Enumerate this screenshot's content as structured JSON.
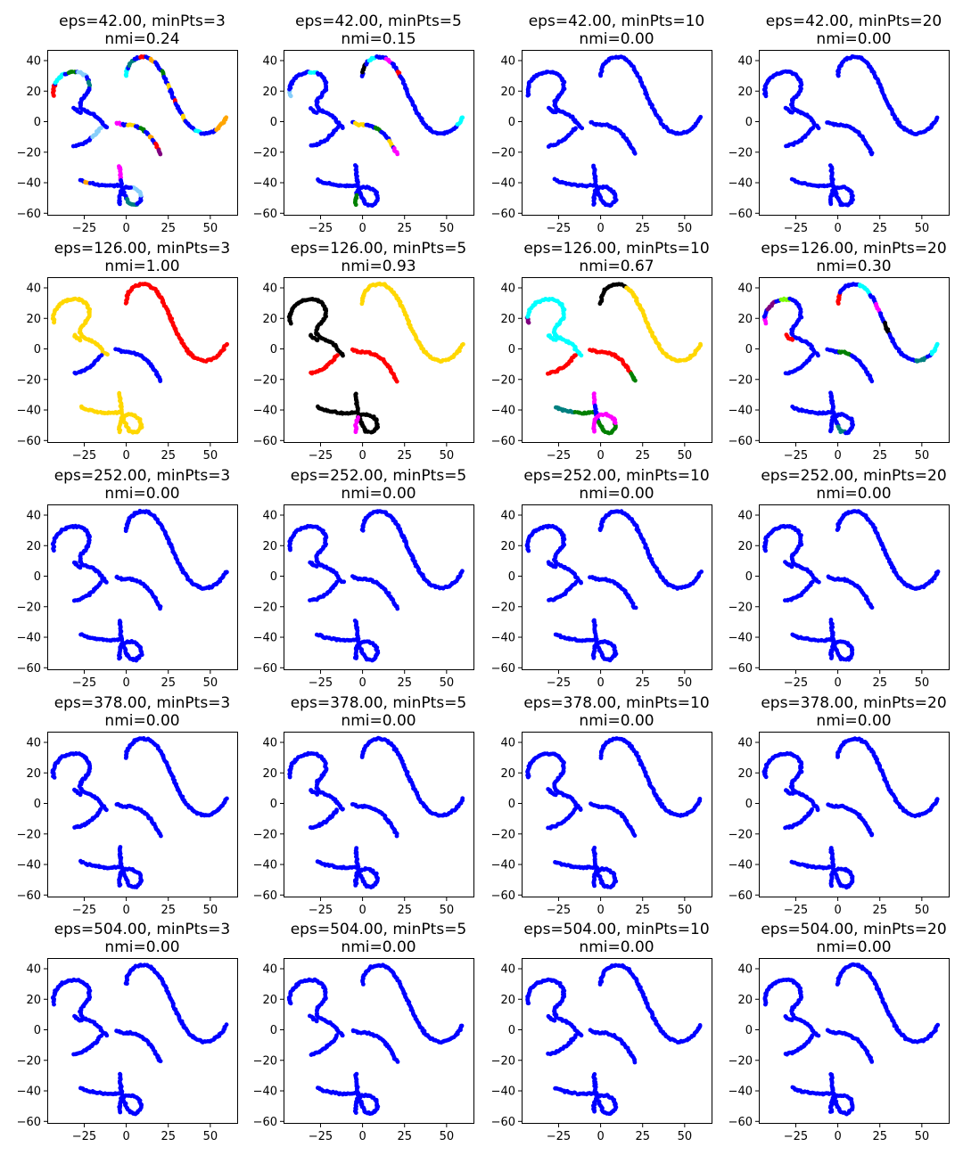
{
  "chart_data": {
    "type": "scatter",
    "figure_layout": "5x4 grid of scatter subplots",
    "xlim": [
      -47,
      66
    ],
    "ylim": [
      -61,
      47
    ],
    "xticks": [
      -25,
      0,
      25,
      50
    ],
    "yticks": [
      -60,
      -40,
      -20,
      0,
      20,
      40
    ],
    "xtick_labels": [
      "−25",
      "0",
      "25",
      "50"
    ],
    "ytick_labels": [
      "−60",
      "−40",
      "−20",
      "0",
      "20",
      "40"
    ],
    "palette": {
      "blue": "#0000ff",
      "red": "#ff0000",
      "gold": "#ffd700",
      "black": "#000000",
      "cyan": "#00ffff",
      "magenta": "#ff00ff",
      "green": "#008000",
      "teal": "#008080",
      "orange": "#ffa500",
      "purple": "#800080",
      "light-green": "#7cfc00",
      "brown": "#8b4513",
      "light-blue": "#87cefa"
    },
    "curves": {
      "s_curve": [
        [
          0,
          30
        ],
        [
          0.5,
          34
        ],
        [
          2,
          38
        ],
        [
          5,
          41
        ],
        [
          9,
          42.5
        ],
        [
          13,
          42
        ],
        [
          17,
          39
        ],
        [
          21,
          33
        ],
        [
          25,
          24
        ],
        [
          28,
          16
        ],
        [
          31,
          9
        ],
        [
          34,
          3
        ],
        [
          37,
          -2
        ],
        [
          41,
          -6
        ],
        [
          46,
          -8
        ],
        [
          51,
          -7
        ],
        [
          55,
          -4
        ],
        [
          58,
          0
        ],
        [
          59.5,
          3
        ]
      ],
      "hook": [
        [
          -43,
          17
        ],
        [
          -43.5,
          21
        ],
        [
          -42,
          26
        ],
        [
          -38,
          30.5
        ],
        [
          -33,
          32.5
        ],
        [
          -28,
          32.5
        ],
        [
          -24,
          30
        ],
        [
          -22,
          26
        ],
        [
          -22,
          21
        ],
        [
          -24.5,
          17
        ],
        [
          -27,
          14
        ],
        [
          -27.5,
          10.5
        ],
        [
          -26,
          8
        ],
        [
          -23,
          6.5
        ],
        [
          -19,
          4.5
        ],
        [
          -16,
          2
        ],
        [
          -14,
          -1.5
        ],
        [
          -11.5,
          -4
        ]
      ],
      "cross": [
        [
          -31,
          9
        ],
        [
          -29,
          7
        ],
        [
          -27,
          6
        ]
      ],
      "middle": [
        [
          -31,
          -16
        ],
        [
          -27,
          -15
        ],
        [
          -22,
          -12
        ],
        [
          -18,
          -8
        ],
        [
          -15,
          -4
        ]
      ],
      "arc": [
        [
          -6,
          -0.5
        ],
        [
          -2,
          -2
        ],
        [
          3,
          -2
        ],
        [
          8,
          -4
        ],
        [
          12,
          -7
        ],
        [
          15,
          -11
        ],
        [
          18,
          -16
        ],
        [
          20.5,
          -21
        ]
      ],
      "bottom_line": [
        [
          -27,
          -38
        ],
        [
          -23,
          -40
        ],
        [
          -18,
          -41
        ],
        [
          -13,
          -42
        ],
        [
          -8,
          -42
        ],
        [
          -3,
          -41.5
        ]
      ],
      "loop": [
        [
          -4,
          -29
        ],
        [
          -3.5,
          -34
        ],
        [
          -3,
          -40
        ],
        [
          -2,
          -45
        ],
        [
          0,
          -50
        ],
        [
          2,
          -54
        ],
        [
          6,
          -55
        ],
        [
          9,
          -51
        ],
        [
          8,
          -46
        ],
        [
          4,
          -43
        ],
        [
          0,
          -43
        ],
        [
          -3,
          -45
        ],
        [
          -4,
          -50
        ],
        [
          -4,
          -54
        ]
      ]
    },
    "subplots": [
      {
        "title_line1": "eps=42.00, minPts=3",
        "title_line2": "nmi=0.24",
        "default_color": "blue",
        "segments": [
          {
            "curve": "hook",
            "from": 0.0,
            "to": 0.1,
            "color": "red"
          },
          {
            "curve": "hook",
            "from": 0.12,
            "to": 0.22,
            "color": "cyan"
          },
          {
            "curve": "hook",
            "from": 0.25,
            "to": 0.32,
            "color": "green"
          },
          {
            "curve": "hook",
            "from": 0.34,
            "to": 0.42,
            "color": "light-blue"
          },
          {
            "curve": "hook",
            "from": 0.46,
            "to": 0.52,
            "color": "teal"
          },
          {
            "curve": "s_curve",
            "from": 0.0,
            "to": 0.05,
            "color": "cyan"
          },
          {
            "curve": "s_curve",
            "from": 0.07,
            "to": 0.12,
            "color": "teal"
          },
          {
            "curve": "s_curve",
            "from": 0.16,
            "to": 0.19,
            "color": "red"
          },
          {
            "curve": "s_curve",
            "from": 0.22,
            "to": 0.25,
            "color": "orange"
          },
          {
            "curve": "s_curve",
            "from": 0.33,
            "to": 0.36,
            "color": "green"
          },
          {
            "curve": "s_curve",
            "from": 0.42,
            "to": 0.45,
            "color": "gold"
          },
          {
            "curve": "s_curve",
            "from": 0.52,
            "to": 0.55,
            "color": "red"
          },
          {
            "curve": "s_curve",
            "from": 0.64,
            "to": 0.67,
            "color": "gold"
          },
          {
            "curve": "s_curve",
            "from": 0.76,
            "to": 0.8,
            "color": "cyan"
          },
          {
            "curve": "s_curve",
            "from": 0.9,
            "to": 1.0,
            "color": "orange"
          },
          {
            "curve": "middle",
            "from": 0.6,
            "to": 1.0,
            "color": "light-blue"
          },
          {
            "curve": "arc",
            "from": 0.0,
            "to": 0.1,
            "color": "magenta"
          },
          {
            "curve": "arc",
            "from": 0.2,
            "to": 0.3,
            "color": "gold"
          },
          {
            "curve": "arc",
            "from": 0.42,
            "to": 0.5,
            "color": "green"
          },
          {
            "curve": "arc",
            "from": 0.62,
            "to": 0.7,
            "color": "orange"
          },
          {
            "curve": "arc",
            "from": 0.8,
            "to": 0.9,
            "color": "red"
          },
          {
            "curve": "arc",
            "from": 0.92,
            "to": 1.0,
            "color": "purple"
          },
          {
            "curve": "bottom_line",
            "from": 0.1,
            "to": 0.25,
            "color": "orange"
          },
          {
            "curve": "loop",
            "from": 0.0,
            "to": 0.15,
            "color": "magenta"
          },
          {
            "curve": "loop",
            "from": 0.35,
            "to": 0.5,
            "color": "teal"
          },
          {
            "curve": "loop",
            "from": 0.6,
            "to": 0.75,
            "color": "light-blue"
          }
        ]
      },
      {
        "title_line1": "eps=42.00, minPts=5",
        "title_line2": "nmi=0.15",
        "default_color": "blue",
        "segments": [
          {
            "curve": "hook",
            "from": 0.0,
            "to": 0.06,
            "color": "light-blue"
          },
          {
            "curve": "hook",
            "from": 0.3,
            "to": 0.36,
            "color": "cyan"
          },
          {
            "curve": "s_curve",
            "from": 0.02,
            "to": 0.08,
            "color": "black"
          },
          {
            "curve": "s_curve",
            "from": 0.1,
            "to": 0.16,
            "color": "cyan"
          },
          {
            "curve": "s_curve",
            "from": 0.22,
            "to": 0.26,
            "color": "magenta"
          },
          {
            "curve": "s_curve",
            "from": 0.33,
            "to": 0.36,
            "color": "red"
          },
          {
            "curve": "s_curve",
            "from": 0.94,
            "to": 1.0,
            "color": "cyan"
          },
          {
            "curve": "arc",
            "from": 0.05,
            "to": 0.2,
            "color": "gold"
          },
          {
            "curve": "arc",
            "from": 0.4,
            "to": 0.5,
            "color": "green"
          },
          {
            "curve": "arc",
            "from": 0.75,
            "to": 0.85,
            "color": "gold"
          },
          {
            "curve": "arc",
            "from": 0.9,
            "to": 1.0,
            "color": "magenta"
          },
          {
            "curve": "loop",
            "from": 0.9,
            "to": 1.0,
            "color": "green"
          }
        ]
      },
      {
        "title_line1": "eps=42.00, minPts=10",
        "title_line2": "nmi=0.00",
        "default_color": "blue",
        "segments": []
      },
      {
        "title_line1": "eps=42.00, minPts=20",
        "title_line2": "nmi=0.00",
        "default_color": "blue",
        "segments": []
      },
      {
        "title_line1": "eps=126.00, minPts=3",
        "title_line2": "nmi=1.00",
        "default_color": "blue",
        "segments": [
          {
            "curve": "hook",
            "from": 0.0,
            "to": 1.0,
            "color": "gold"
          },
          {
            "curve": "cross",
            "from": 0.0,
            "to": 1.0,
            "color": "gold"
          },
          {
            "curve": "s_curve",
            "from": 0.0,
            "to": 1.0,
            "color": "red"
          },
          {
            "curve": "bottom_line",
            "from": 0.0,
            "to": 1.0,
            "color": "gold"
          },
          {
            "curve": "loop",
            "from": 0.0,
            "to": 1.0,
            "color": "gold"
          }
        ]
      },
      {
        "title_line1": "eps=126.00, minPts=5",
        "title_line2": "nmi=0.93",
        "default_color": "blue",
        "segments": [
          {
            "curve": "hook",
            "from": 0.0,
            "to": 1.0,
            "color": "black"
          },
          {
            "curve": "cross",
            "from": 0.0,
            "to": 1.0,
            "color": "black"
          },
          {
            "curve": "middle",
            "from": 0.0,
            "to": 1.0,
            "color": "red"
          },
          {
            "curve": "arc",
            "from": 0.0,
            "to": 1.0,
            "color": "red"
          },
          {
            "curve": "s_curve",
            "from": 0.0,
            "to": 1.0,
            "color": "gold"
          },
          {
            "curve": "bottom_line",
            "from": 0.0,
            "to": 1.0,
            "color": "black"
          },
          {
            "curve": "loop",
            "from": 0.0,
            "to": 0.55,
            "color": "black"
          },
          {
            "curve": "loop",
            "from": 0.55,
            "to": 0.85,
            "color": "black"
          },
          {
            "curve": "loop",
            "from": 0.85,
            "to": 1.0,
            "color": "magenta"
          }
        ]
      },
      {
        "title_line1": "eps=126.00, minPts=10",
        "title_line2": "nmi=0.67",
        "default_color": "blue",
        "segments": [
          {
            "curve": "hook",
            "from": 0.0,
            "to": 0.06,
            "color": "purple"
          },
          {
            "curve": "hook",
            "from": 0.06,
            "to": 1.0,
            "color": "cyan"
          },
          {
            "curve": "cross",
            "from": 0.0,
            "to": 1.0,
            "color": "cyan"
          },
          {
            "curve": "s_curve",
            "from": 0.0,
            "to": 0.24,
            "color": "black"
          },
          {
            "curve": "s_curve",
            "from": 0.24,
            "to": 1.0,
            "color": "gold"
          },
          {
            "curve": "middle",
            "from": 0.0,
            "to": 1.0,
            "color": "red"
          },
          {
            "curve": "arc",
            "from": 0.0,
            "to": 0.85,
            "color": "red"
          },
          {
            "curve": "arc",
            "from": 0.85,
            "to": 1.0,
            "color": "green"
          },
          {
            "curve": "bottom_line",
            "from": 0.0,
            "to": 0.5,
            "color": "teal"
          },
          {
            "curve": "bottom_line",
            "from": 0.5,
            "to": 1.0,
            "color": "green"
          },
          {
            "curve": "loop",
            "from": 0.0,
            "to": 0.12,
            "color": "magenta"
          },
          {
            "curve": "loop",
            "from": 0.3,
            "to": 0.6,
            "color": "green"
          },
          {
            "curve": "loop",
            "from": 0.6,
            "to": 1.0,
            "color": "magenta"
          }
        ]
      },
      {
        "title_line1": "eps=126.00, minPts=20",
        "title_line2": "nmi=0.30",
        "default_color": "blue",
        "segments": [
          {
            "curve": "hook",
            "from": 0.0,
            "to": 0.06,
            "color": "magenta"
          },
          {
            "curve": "hook",
            "from": 0.12,
            "to": 0.22,
            "color": "purple"
          },
          {
            "curve": "hook",
            "from": 0.26,
            "to": 0.34,
            "color": "light-green"
          },
          {
            "curve": "cross",
            "from": 0.0,
            "to": 1.0,
            "color": "red"
          },
          {
            "curve": "s_curve",
            "from": 0.0,
            "to": 0.07,
            "color": "red"
          },
          {
            "curve": "s_curve",
            "from": 0.2,
            "to": 0.3,
            "color": "cyan"
          },
          {
            "curve": "s_curve",
            "from": 0.36,
            "to": 0.42,
            "color": "magenta"
          },
          {
            "curve": "s_curve",
            "from": 0.5,
            "to": 0.58,
            "color": "black"
          },
          {
            "curve": "s_curve",
            "from": 0.82,
            "to": 0.9,
            "color": "teal"
          },
          {
            "curve": "s_curve",
            "from": 0.92,
            "to": 1.0,
            "color": "cyan"
          },
          {
            "curve": "arc",
            "from": 0.2,
            "to": 0.42,
            "color": "green"
          },
          {
            "curve": "loop",
            "from": 0.35,
            "to": 0.45,
            "color": "teal"
          }
        ]
      },
      {
        "title_line1": "eps=252.00, minPts=3",
        "title_line2": "nmi=0.00",
        "default_color": "blue",
        "segments": []
      },
      {
        "title_line1": "eps=252.00, minPts=5",
        "title_line2": "nmi=0.00",
        "default_color": "blue",
        "segments": []
      },
      {
        "title_line1": "eps=252.00, minPts=10",
        "title_line2": "nmi=0.00",
        "default_color": "blue",
        "segments": []
      },
      {
        "title_line1": "eps=252.00, minPts=20",
        "title_line2": "nmi=0.00",
        "default_color": "blue",
        "segments": []
      },
      {
        "title_line1": "eps=378.00, minPts=3",
        "title_line2": "nmi=0.00",
        "default_color": "blue",
        "segments": []
      },
      {
        "title_line1": "eps=378.00, minPts=5",
        "title_line2": "nmi=0.00",
        "default_color": "blue",
        "segments": []
      },
      {
        "title_line1": "eps=378.00, minPts=10",
        "title_line2": "nmi=0.00",
        "default_color": "blue",
        "segments": []
      },
      {
        "title_line1": "eps=378.00, minPts=20",
        "title_line2": "nmi=0.00",
        "default_color": "blue",
        "segments": []
      },
      {
        "title_line1": "eps=504.00, minPts=3",
        "title_line2": "nmi=0.00",
        "default_color": "blue",
        "segments": []
      },
      {
        "title_line1": "eps=504.00, minPts=5",
        "title_line2": "nmi=0.00",
        "default_color": "blue",
        "segments": []
      },
      {
        "title_line1": "eps=504.00, minPts=10",
        "title_line2": "nmi=0.00",
        "default_color": "blue",
        "segments": []
      },
      {
        "title_line1": "eps=504.00, minPts=20",
        "title_line2": "nmi=0.00",
        "default_color": "blue",
        "segments": []
      }
    ]
  }
}
